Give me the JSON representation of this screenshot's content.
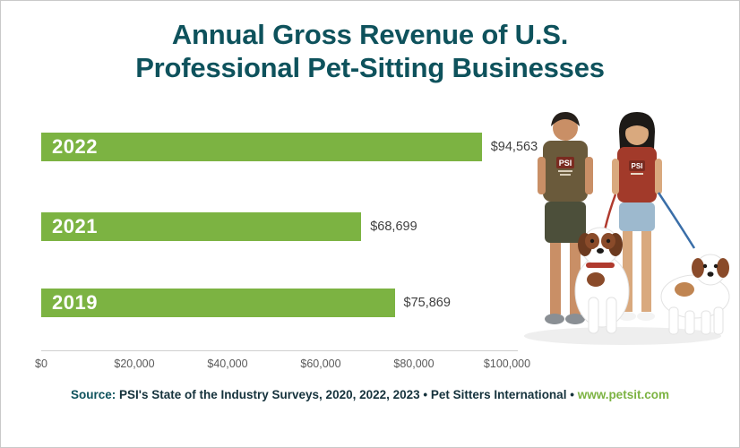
{
  "title": {
    "line1": "Annual Gross Revenue of U.S.",
    "line2": "Professional Pet-Sitting Businesses"
  },
  "chart_data": {
    "type": "bar",
    "orientation": "horizontal",
    "title": "Annual Gross Revenue of U.S. Professional Pet-Sitting Businesses",
    "categories": [
      "2022",
      "2021",
      "2019"
    ],
    "values": [
      94563,
      68699,
      75869
    ],
    "value_labels": [
      "$94,563",
      "$68,699",
      "$75,869"
    ],
    "x_ticks": [
      "$0",
      "$20,000",
      "$40,000",
      "$60,000",
      "$80,000",
      "$100,000"
    ],
    "x_tick_values": [
      0,
      20000,
      40000,
      60000,
      80000,
      100000
    ],
    "xlim": [
      0,
      100000
    ],
    "xlabel": "",
    "ylabel": "",
    "grid": false,
    "legend": false,
    "bar_color": "#7cb342"
  },
  "source": {
    "prefix": "Source:",
    "body": " PSI's State of the Industry Surveys, 2020, 2022, 2023 ",
    "separator1": "•",
    "org": " Pet Sitters International ",
    "separator2": "•",
    "link": " www.petsit.com"
  },
  "colors": {
    "teal": "#0e525c",
    "green": "#7cb342"
  },
  "photo": {
    "label": "two pet sitters with two Saint Bernard dogs"
  }
}
